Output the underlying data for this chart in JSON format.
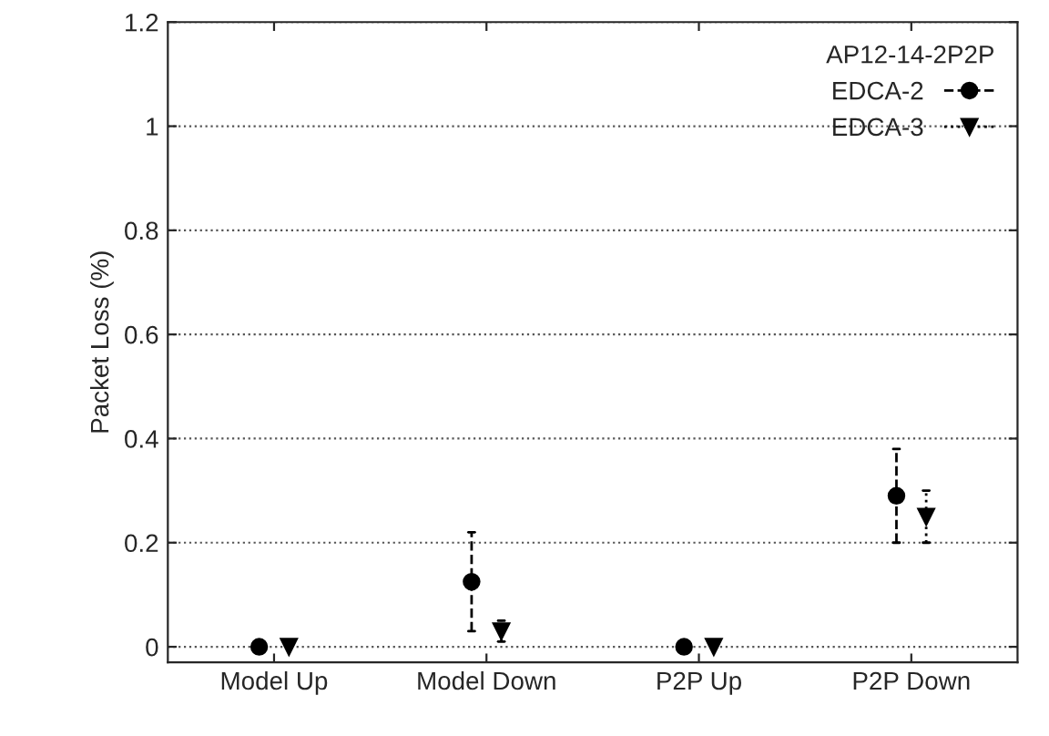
{
  "chart_data": {
    "type": "scatter",
    "ylabel": "Packet Loss (%)",
    "legend_title": "AP12-14-2P2P",
    "categories": [
      "Model Up",
      "Model Down",
      "P2P Up",
      "P2P Down"
    ],
    "series": [
      {
        "name": "EDCA-2",
        "color": "#000000",
        "marker": "circle",
        "line_style": "dashed",
        "values": [
          0,
          0.125,
          0,
          0.29
        ],
        "errors": [
          null,
          [
            0.03,
            0.22
          ],
          null,
          [
            0.2,
            0.38
          ]
        ]
      },
      {
        "name": "EDCA-3",
        "color": "#000000",
        "marker": "triangle",
        "line_style": "dotted",
        "values": [
          0,
          0.03,
          0,
          0.25
        ],
        "errors": [
          null,
          [
            0.01,
            0.05
          ],
          null,
          [
            0.2,
            0.3
          ]
        ]
      }
    ],
    "ylim": [
      -0.03,
      1.2
    ],
    "yticks": [
      0,
      0.2,
      0.4,
      0.6,
      0.8,
      1,
      1.2
    ],
    "grid": "y",
    "legend": "top right"
  }
}
